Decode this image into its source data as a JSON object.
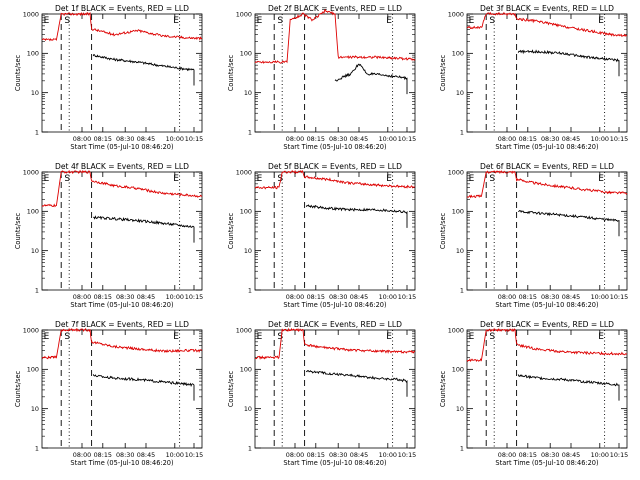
{
  "chart_data": [
    {
      "type": "line",
      "title": "Det 1f BLACK = Events, RED = LLD",
      "xlabel": "Start Time (05-Jul-10 08:46:20)",
      "ylabel": "Counts/sec",
      "x_ticks": [
        "08:00",
        "08:15",
        "08:30",
        "08:45",
        "10:00",
        "10:15"
      ],
      "y_ticks": [
        "1",
        "10",
        "100",
        "1000"
      ],
      "ylim": [
        1,
        1000
      ],
      "y_scale": "log",
      "markers": [
        "E",
        "S",
        "E"
      ],
      "series": [
        {
          "name": "RED = LLD",
          "color": "#dd0000",
          "points": [
            [
              0,
              220
            ],
            [
              0.09,
              220
            ],
            [
              0.12,
              1000
            ],
            [
              0.3,
              1000
            ],
            [
              0.31,
              420
            ],
            [
              0.45,
              300
            ],
            [
              0.6,
              380
            ],
            [
              0.75,
              280
            ],
            [
              0.9,
              250
            ],
            [
              1.0,
              240
            ]
          ]
        },
        {
          "name": "BLACK = Events",
          "color": "#000000",
          "points": [
            [
              0.32,
              90
            ],
            [
              0.45,
              70
            ],
            [
              0.6,
              60
            ],
            [
              0.75,
              48
            ],
            [
              0.9,
              40
            ],
            [
              0.95,
              38
            ]
          ]
        }
      ]
    },
    {
      "type": "line",
      "title": "Det 2f BLACK = Events, RED = LLD",
      "xlabel": "Start Time (05-Jul-10 08:46:20)",
      "ylabel": "Counts/sec",
      "x_ticks": [
        "08:00",
        "08:15",
        "08:30",
        "08:45",
        "10:00",
        "10:15"
      ],
      "y_ticks": [
        "1",
        "10",
        "100",
        "1000"
      ],
      "ylim": [
        1,
        1000
      ],
      "y_scale": "log",
      "markers": [
        "E",
        "S",
        "E"
      ],
      "series": [
        {
          "name": "RED = LLD",
          "color": "#dd0000",
          "points": [
            [
              0,
              60
            ],
            [
              0.2,
              60
            ],
            [
              0.22,
              700
            ],
            [
              0.3,
              1000
            ],
            [
              0.36,
              700
            ],
            [
              0.44,
              1200
            ],
            [
              0.5,
              1000
            ],
            [
              0.52,
              80
            ],
            [
              0.6,
              80
            ],
            [
              0.75,
              80
            ],
            [
              0.9,
              75
            ],
            [
              1.0,
              70
            ]
          ]
        },
        {
          "name": "BLACK = Events",
          "color": "#000000",
          "points": [
            [
              0.5,
              20
            ],
            [
              0.55,
              25
            ],
            [
              0.6,
              30
            ],
            [
              0.65,
              55
            ],
            [
              0.7,
              30
            ],
            [
              0.8,
              28
            ],
            [
              0.9,
              25
            ],
            [
              0.95,
              23
            ]
          ]
        }
      ]
    },
    {
      "type": "line",
      "title": "Det 3f BLACK = Events, RED = LLD",
      "xlabel": "Start Time (05-Jul-10 08:46:20)",
      "ylabel": "Counts/sec",
      "x_ticks": [
        "08:00",
        "08:15",
        "08:30",
        "08:45",
        "10:00",
        "10:15"
      ],
      "y_ticks": [
        "1",
        "10",
        "100",
        "1000"
      ],
      "ylim": [
        1,
        1000
      ],
      "y_scale": "log",
      "markers": [
        "E",
        "S",
        "E"
      ],
      "series": [
        {
          "name": "RED = LLD",
          "color": "#dd0000",
          "points": [
            [
              0,
              450
            ],
            [
              0.09,
              450
            ],
            [
              0.12,
              1000
            ],
            [
              0.3,
              1000
            ],
            [
              0.31,
              750
            ],
            [
              0.45,
              650
            ],
            [
              0.6,
              480
            ],
            [
              0.75,
              380
            ],
            [
              0.9,
              300
            ],
            [
              1.0,
              280
            ]
          ]
        },
        {
          "name": "BLACK = Events",
          "color": "#000000",
          "points": [
            [
              0.32,
              110
            ],
            [
              0.45,
              110
            ],
            [
              0.6,
              100
            ],
            [
              0.75,
              80
            ],
            [
              0.9,
              70
            ],
            [
              0.95,
              65
            ]
          ]
        }
      ]
    },
    {
      "type": "line",
      "title": "Det 4f BLACK = Events, RED = LLD",
      "xlabel": "Start Time (05-Jul-10 08:46:20)",
      "ylabel": "Counts/sec",
      "x_ticks": [
        "08:00",
        "08:15",
        "08:30",
        "08:45",
        "10:00",
        "10:15"
      ],
      "y_ticks": [
        "1",
        "10",
        "100",
        "1000"
      ],
      "ylim": [
        1,
        1000
      ],
      "y_scale": "log",
      "markers": [
        "E",
        "S",
        "E"
      ],
      "series": [
        {
          "name": "RED = LLD",
          "color": "#dd0000",
          "points": [
            [
              0,
              140
            ],
            [
              0.09,
              140
            ],
            [
              0.12,
              1000
            ],
            [
              0.3,
              1000
            ],
            [
              0.31,
              600
            ],
            [
              0.45,
              450
            ],
            [
              0.6,
              380
            ],
            [
              0.75,
              290
            ],
            [
              0.9,
              260
            ],
            [
              1.0,
              240
            ]
          ]
        },
        {
          "name": "BLACK = Events",
          "color": "#000000",
          "points": [
            [
              0.32,
              70
            ],
            [
              0.45,
              65
            ],
            [
              0.6,
              58
            ],
            [
              0.75,
              50
            ],
            [
              0.9,
              42
            ],
            [
              0.95,
              40
            ]
          ]
        }
      ]
    },
    {
      "type": "line",
      "title": "Det 5f BLACK = Events, RED = LLD",
      "xlabel": "Start Time (05-Jul-10 08:46:20)",
      "ylabel": "Counts/sec",
      "x_ticks": [
        "08:00",
        "08:15",
        "08:30",
        "08:45",
        "10:00",
        "10:15"
      ],
      "y_ticks": [
        "1",
        "10",
        "100",
        "1000"
      ],
      "ylim": [
        1,
        1000
      ],
      "y_scale": "log",
      "markers": [
        "E",
        "S",
        "E"
      ],
      "series": [
        {
          "name": "RED = LLD",
          "color": "#dd0000",
          "points": [
            [
              0,
              400
            ],
            [
              0.15,
              400
            ],
            [
              0.17,
              1000
            ],
            [
              0.3,
              1000
            ],
            [
              0.31,
              750
            ],
            [
              0.45,
              650
            ],
            [
              0.6,
              520
            ],
            [
              0.75,
              470
            ],
            [
              0.9,
              430
            ],
            [
              1.0,
              420
            ]
          ]
        },
        {
          "name": "BLACK = Events",
          "color": "#000000",
          "points": [
            [
              0.32,
              140
            ],
            [
              0.45,
              120
            ],
            [
              0.6,
              110
            ],
            [
              0.75,
              110
            ],
            [
              0.9,
              100
            ],
            [
              0.95,
              95
            ]
          ]
        }
      ]
    },
    {
      "type": "line",
      "title": "Det 6f BLACK = Events, RED = LLD",
      "xlabel": "Start Time (05-Jul-10 08:46:20)",
      "ylabel": "Counts/sec",
      "x_ticks": [
        "08:00",
        "08:15",
        "08:30",
        "08:45",
        "10:00",
        "10:15"
      ],
      "y_ticks": [
        "1",
        "10",
        "100",
        "1000"
      ],
      "ylim": [
        1,
        1000
      ],
      "y_scale": "log",
      "markers": [
        "E",
        "S",
        "E"
      ],
      "series": [
        {
          "name": "RED = LLD",
          "color": "#dd0000",
          "points": [
            [
              0,
              240
            ],
            [
              0.09,
              240
            ],
            [
              0.12,
              1000
            ],
            [
              0.3,
              1000
            ],
            [
              0.31,
              650
            ],
            [
              0.45,
              500
            ],
            [
              0.6,
              420
            ],
            [
              0.75,
              350
            ],
            [
              0.9,
              300
            ],
            [
              1.0,
              290
            ]
          ]
        },
        {
          "name": "BLACK = Events",
          "color": "#000000",
          "points": [
            [
              0.32,
              100
            ],
            [
              0.45,
              90
            ],
            [
              0.6,
              80
            ],
            [
              0.75,
              70
            ],
            [
              0.9,
              60
            ],
            [
              0.95,
              58
            ]
          ]
        }
      ]
    },
    {
      "type": "line",
      "title": "Det 7f BLACK = Events, RED = LLD",
      "xlabel": "Start Time (05-Jul-10 08:46:20)",
      "ylabel": "Counts/sec",
      "x_ticks": [
        "08:00",
        "08:15",
        "08:30",
        "08:45",
        "10:00",
        "10:15"
      ],
      "y_ticks": [
        "1",
        "10",
        "100",
        "1000"
      ],
      "ylim": [
        1,
        1000
      ],
      "y_scale": "log",
      "markers": [
        "E",
        "S",
        "E"
      ],
      "series": [
        {
          "name": "RED = LLD",
          "color": "#dd0000",
          "points": [
            [
              0,
              200
            ],
            [
              0.09,
              200
            ],
            [
              0.12,
              1000
            ],
            [
              0.3,
              1000
            ],
            [
              0.31,
              500
            ],
            [
              0.45,
              380
            ],
            [
              0.6,
              330
            ],
            [
              0.75,
              290
            ],
            [
              0.9,
              300
            ],
            [
              1.0,
              300
            ]
          ]
        },
        {
          "name": "BLACK = Events",
          "color": "#000000",
          "points": [
            [
              0.32,
              70
            ],
            [
              0.45,
              60
            ],
            [
              0.6,
              55
            ],
            [
              0.75,
              48
            ],
            [
              0.9,
              42
            ],
            [
              0.95,
              40
            ]
          ]
        }
      ]
    },
    {
      "type": "line",
      "title": "Det 8f BLACK = Events, RED = LLD",
      "xlabel": "Start Time (05-Jul-10 08:46:20)",
      "ylabel": "Counts/sec",
      "x_ticks": [
        "08:00",
        "08:15",
        "08:30",
        "08:45",
        "10:00",
        "10:15"
      ],
      "y_ticks": [
        "1",
        "10",
        "100",
        "1000"
      ],
      "ylim": [
        1,
        1000
      ],
      "y_scale": "log",
      "markers": [
        "E",
        "S",
        "E"
      ],
      "series": [
        {
          "name": "RED = LLD",
          "color": "#dd0000",
          "points": [
            [
              0,
              200
            ],
            [
              0.15,
              200
            ],
            [
              0.17,
              1000
            ],
            [
              0.3,
              1000
            ],
            [
              0.31,
              420
            ],
            [
              0.45,
              350
            ],
            [
              0.6,
              310
            ],
            [
              0.75,
              290
            ],
            [
              0.9,
              280
            ],
            [
              1.0,
              280
            ]
          ]
        },
        {
          "name": "BLACK = Events",
          "color": "#000000",
          "points": [
            [
              0.32,
              90
            ],
            [
              0.45,
              80
            ],
            [
              0.6,
              70
            ],
            [
              0.75,
              60
            ],
            [
              0.9,
              55
            ],
            [
              0.95,
              50
            ]
          ]
        }
      ]
    },
    {
      "type": "line",
      "title": "Det 9f BLACK = Events, RED = LLD",
      "xlabel": "Start Time (05-Jul-10 08:46:20)",
      "ylabel": "Counts/sec",
      "x_ticks": [
        "08:00",
        "08:15",
        "08:30",
        "08:45",
        "10:00",
        "10:15"
      ],
      "y_ticks": [
        "1",
        "10",
        "100",
        "1000"
      ],
      "ylim": [
        1,
        1000
      ],
      "y_scale": "log",
      "markers": [
        "E",
        "S",
        "E"
      ],
      "series": [
        {
          "name": "RED = LLD",
          "color": "#dd0000",
          "points": [
            [
              0,
              170
            ],
            [
              0.09,
              170
            ],
            [
              0.12,
              1000
            ],
            [
              0.3,
              1000
            ],
            [
              0.31,
              420
            ],
            [
              0.45,
              320
            ],
            [
              0.6,
              280
            ],
            [
              0.75,
              260
            ],
            [
              0.9,
              250
            ],
            [
              1.0,
              250
            ]
          ]
        },
        {
          "name": "BLACK = Events",
          "color": "#000000",
          "points": [
            [
              0.32,
              70
            ],
            [
              0.45,
              60
            ],
            [
              0.6,
              55
            ],
            [
              0.75,
              48
            ],
            [
              0.9,
              42
            ],
            [
              0.95,
              40
            ]
          ]
        }
      ]
    }
  ]
}
